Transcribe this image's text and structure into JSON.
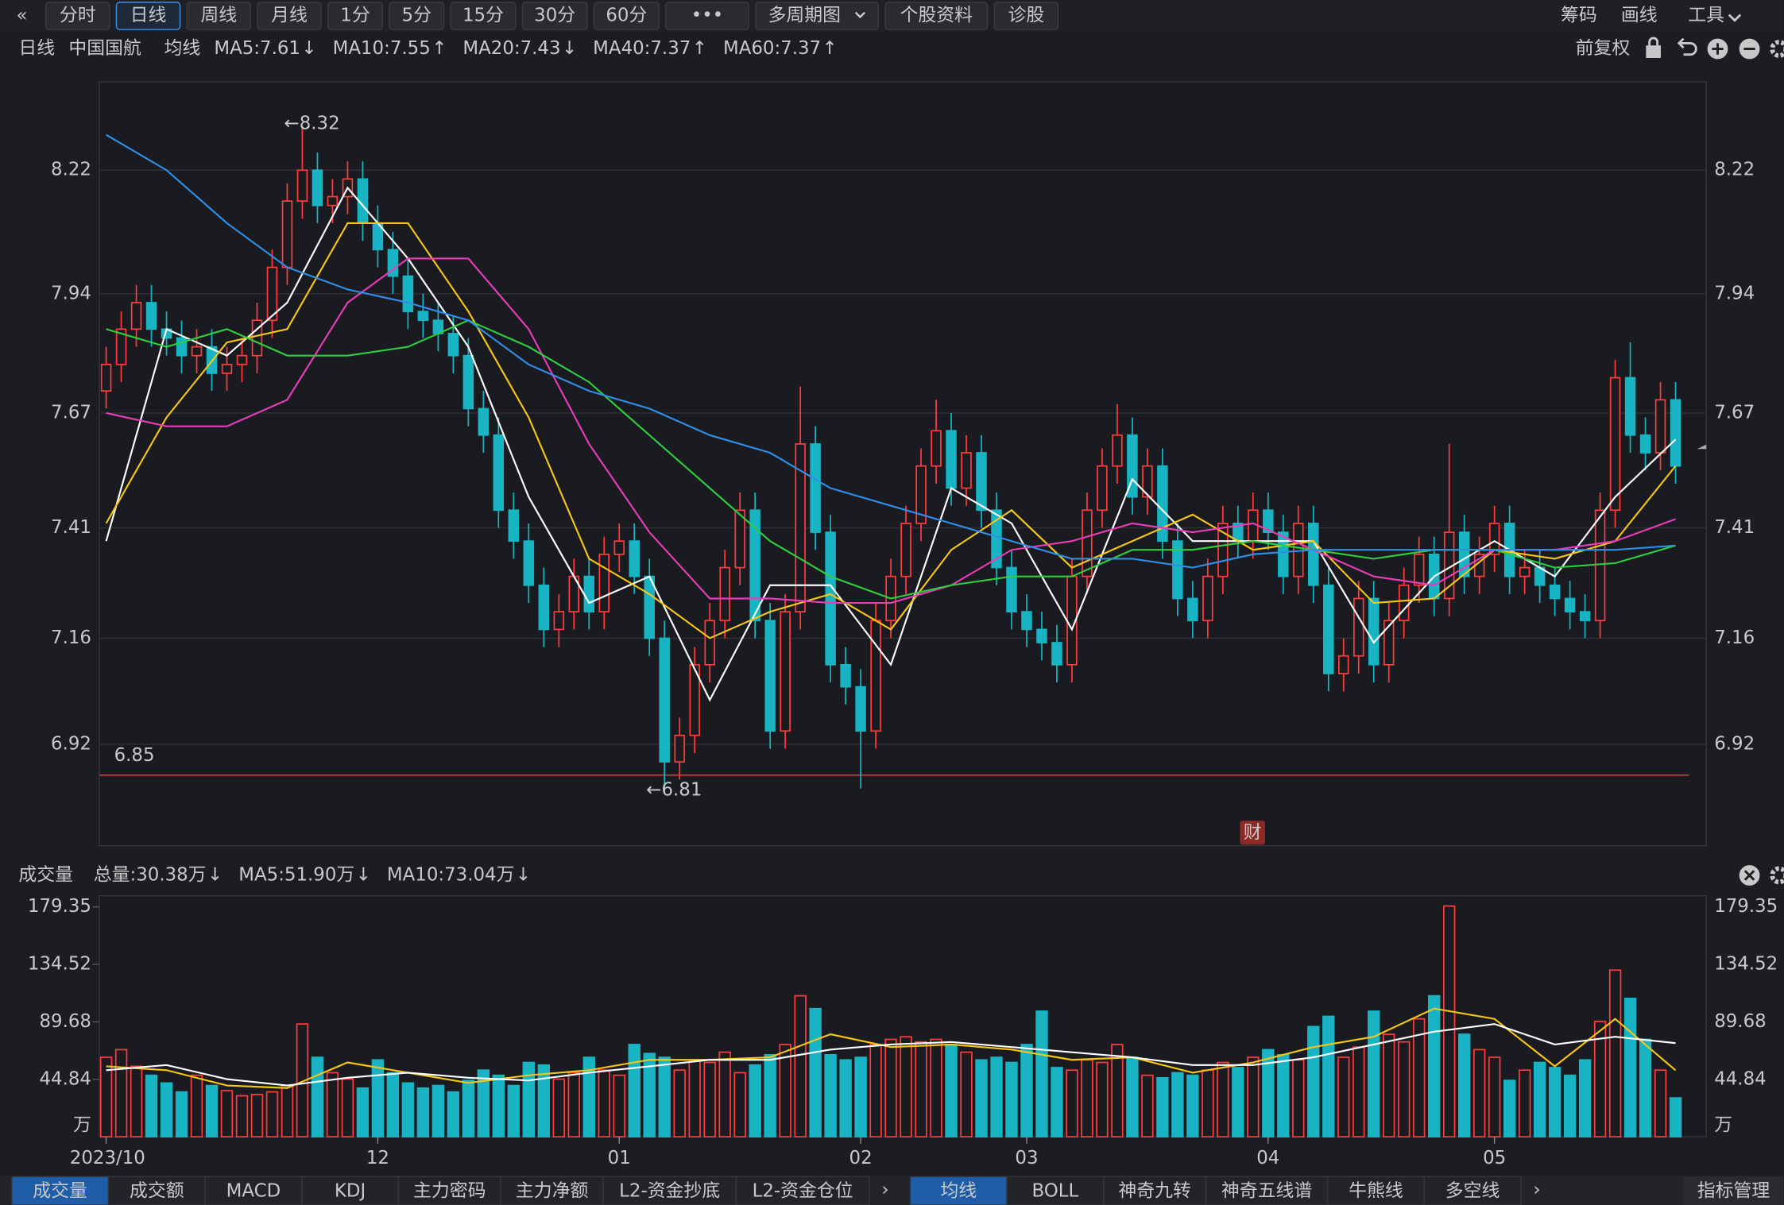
{
  "toolbar": {
    "back": "«",
    "tabs": [
      "分时",
      "日线",
      "周线",
      "月线",
      "1分",
      "5分",
      "15分",
      "30分",
      "60分",
      "•••",
      "多周期图",
      "个股资料",
      "诊股"
    ],
    "active": 1,
    "dropdown": 10,
    "right": [
      "筹码",
      "画线",
      "工具"
    ],
    "right_active": 1
  },
  "adjust": "前复权",
  "chart_data": [
    {
      "type": "candlestick",
      "legend": {
        "period": "日线",
        "name": "中国国航",
        "ma_label": "均线"
      },
      "xlim": [
        0,
        104
      ],
      "xticks": [
        {
          "value": 0,
          "label": "2023/10"
        },
        {
          "value": 18,
          "label": "12"
        },
        {
          "value": 34,
          "label": "01"
        },
        {
          "value": 50,
          "label": "02"
        },
        {
          "value": 61,
          "label": "03"
        },
        {
          "value": 77,
          "label": "04"
        },
        {
          "value": 92,
          "label": "05"
        }
      ],
      "ylim": [
        6.69,
        8.42
      ],
      "yticks": [
        6.92,
        7.16,
        7.41,
        7.67,
        7.94,
        8.22
      ],
      "grid": true,
      "up_color": "#ff3b3b",
      "down_color": "#19b4c4",
      "open": [
        7.72,
        7.78,
        7.86,
        7.92,
        7.86,
        7.84,
        7.8,
        7.82,
        7.76,
        7.78,
        7.8,
        7.88,
        8.0,
        8.15,
        8.22,
        8.14,
        8.16,
        8.2,
        8.1,
        8.04,
        7.98,
        7.9,
        7.88,
        7.85,
        7.8,
        7.68,
        7.62,
        7.45,
        7.38,
        7.28,
        7.18,
        7.22,
        7.3,
        7.22,
        7.35,
        7.38,
        7.3,
        7.16,
        6.88,
        6.94,
        7.1,
        7.2,
        7.32,
        7.45,
        7.2,
        6.95,
        7.22,
        7.6,
        7.4,
        7.1,
        7.05,
        6.95,
        7.2,
        7.3,
        7.42,
        7.55,
        7.63,
        7.5,
        7.58,
        7.45,
        7.32,
        7.22,
        7.18,
        7.15,
        7.1,
        7.3,
        7.45,
        7.55,
        7.62,
        7.48,
        7.55,
        7.38,
        7.25,
        7.2,
        7.3,
        7.42,
        7.38,
        7.45,
        7.4,
        7.3,
        7.42,
        7.28,
        7.08,
        7.12,
        7.25,
        7.1,
        7.2,
        7.28,
        7.35,
        7.25,
        7.4,
        7.3,
        7.35,
        7.42,
        7.3,
        7.32,
        7.28,
        7.25,
        7.22,
        7.2,
        7.45,
        7.75,
        7.62,
        7.58,
        7.7
      ],
      "high": [
        7.82,
        7.9,
        7.96,
        7.96,
        7.9,
        7.88,
        7.86,
        7.86,
        7.82,
        7.84,
        7.92,
        8.04,
        8.19,
        8.32,
        8.26,
        8.2,
        8.24,
        8.24,
        8.14,
        8.08,
        8.02,
        7.94,
        7.92,
        7.89,
        7.84,
        7.72,
        7.66,
        7.49,
        7.42,
        7.32,
        7.26,
        7.34,
        7.34,
        7.39,
        7.42,
        7.42,
        7.34,
        7.2,
        6.98,
        7.14,
        7.24,
        7.36,
        7.49,
        7.49,
        7.24,
        7.26,
        7.73,
        7.64,
        7.44,
        7.14,
        7.09,
        7.24,
        7.34,
        7.46,
        7.59,
        7.7,
        7.67,
        7.62,
        7.62,
        7.49,
        7.36,
        7.26,
        7.22,
        7.19,
        7.34,
        7.49,
        7.59,
        7.69,
        7.66,
        7.59,
        7.59,
        7.42,
        7.29,
        7.34,
        7.46,
        7.46,
        7.49,
        7.49,
        7.44,
        7.46,
        7.46,
        7.32,
        7.16,
        7.29,
        7.29,
        7.24,
        7.32,
        7.39,
        7.39,
        7.6,
        7.44,
        7.39,
        7.46,
        7.46,
        7.36,
        7.36,
        7.32,
        7.29,
        7.26,
        7.49,
        7.79,
        7.83,
        7.66,
        7.74,
        7.74
      ],
      "low": [
        7.68,
        7.74,
        7.82,
        7.82,
        7.8,
        7.76,
        7.76,
        7.72,
        7.72,
        7.74,
        7.76,
        7.84,
        7.96,
        8.11,
        8.1,
        8.1,
        8.12,
        8.06,
        8.0,
        7.94,
        7.86,
        7.84,
        7.81,
        7.76,
        7.64,
        7.58,
        7.41,
        7.34,
        7.24,
        7.14,
        7.14,
        7.18,
        7.18,
        7.18,
        7.31,
        7.26,
        7.12,
        6.81,
        6.84,
        6.9,
        7.06,
        7.16,
        7.28,
        7.16,
        6.91,
        6.91,
        7.18,
        7.36,
        7.06,
        7.01,
        6.82,
        6.91,
        7.16,
        7.26,
        7.38,
        7.51,
        7.46,
        7.46,
        7.41,
        7.28,
        7.18,
        7.14,
        7.11,
        7.06,
        7.06,
        7.26,
        7.41,
        7.51,
        7.44,
        7.44,
        7.34,
        7.21,
        7.16,
        7.16,
        7.26,
        7.34,
        7.34,
        7.36,
        7.26,
        7.26,
        7.24,
        7.04,
        7.04,
        7.08,
        7.06,
        7.06,
        7.16,
        7.24,
        7.21,
        7.21,
        7.26,
        7.26,
        7.31,
        7.26,
        7.26,
        7.24,
        7.21,
        7.18,
        7.16,
        7.16,
        7.41,
        7.58,
        7.54,
        7.54,
        7.51
      ],
      "close": [
        7.78,
        7.86,
        7.92,
        7.86,
        7.84,
        7.8,
        7.82,
        7.76,
        7.78,
        7.8,
        7.88,
        8.0,
        8.15,
        8.22,
        8.14,
        8.16,
        8.2,
        8.1,
        8.04,
        7.98,
        7.9,
        7.88,
        7.85,
        7.8,
        7.68,
        7.62,
        7.45,
        7.38,
        7.28,
        7.18,
        7.22,
        7.3,
        7.22,
        7.35,
        7.38,
        7.3,
        7.16,
        6.88,
        6.94,
        7.1,
        7.2,
        7.32,
        7.45,
        7.2,
        6.95,
        7.22,
        7.6,
        7.4,
        7.1,
        7.05,
        6.95,
        7.2,
        7.3,
        7.42,
        7.55,
        7.63,
        7.5,
        7.58,
        7.45,
        7.32,
        7.22,
        7.18,
        7.15,
        7.1,
        7.3,
        7.45,
        7.55,
        7.62,
        7.48,
        7.55,
        7.38,
        7.25,
        7.2,
        7.3,
        7.42,
        7.38,
        7.45,
        7.4,
        7.3,
        7.42,
        7.28,
        7.08,
        7.12,
        7.25,
        7.1,
        7.2,
        7.28,
        7.35,
        7.25,
        7.4,
        7.3,
        7.35,
        7.42,
        7.3,
        7.32,
        7.28,
        7.25,
        7.22,
        7.2,
        7.45,
        7.75,
        7.62,
        7.58,
        7.7,
        7.55
      ],
      "ma_x": [
        0,
        4,
        8,
        12,
        16,
        20,
        24,
        28,
        32,
        36,
        40,
        44,
        48,
        52,
        56,
        60,
        64,
        68,
        72,
        76,
        80,
        84,
        88,
        92,
        96,
        100,
        104
      ],
      "series": [
        {
          "name": "MA5:7.61",
          "arrow": "↓",
          "arrow_color": "#22d04a",
          "color": "#ffffff",
          "values": [
            7.38,
            7.86,
            7.8,
            7.92,
            8.18,
            8.02,
            7.82,
            7.48,
            7.24,
            7.3,
            7.02,
            7.28,
            7.28,
            7.1,
            7.5,
            7.42,
            7.18,
            7.52,
            7.38,
            7.38,
            7.38,
            7.15,
            7.3,
            7.38,
            7.3,
            7.48,
            7.61
          ]
        },
        {
          "name": "MA10:7.55",
          "arrow": "↑",
          "arrow_color": "#ff3b3b",
          "color": "#f5c518",
          "values": [
            7.42,
            7.66,
            7.83,
            7.86,
            8.1,
            8.1,
            7.9,
            7.66,
            7.34,
            7.26,
            7.16,
            7.22,
            7.26,
            7.18,
            7.36,
            7.45,
            7.32,
            7.38,
            7.44,
            7.36,
            7.38,
            7.24,
            7.25,
            7.36,
            7.34,
            7.38,
            7.55
          ]
        },
        {
          "name": "MA20:7.43",
          "arrow": "↓",
          "arrow_color": "#22d04a",
          "color": "#e83cb8",
          "values": [
            7.67,
            7.64,
            7.64,
            7.7,
            7.92,
            8.02,
            8.02,
            7.86,
            7.6,
            7.4,
            7.25,
            7.25,
            7.24,
            7.24,
            7.28,
            7.36,
            7.38,
            7.42,
            7.4,
            7.42,
            7.36,
            7.3,
            7.28,
            7.36,
            7.36,
            7.38,
            7.43
          ]
        },
        {
          "name": "MA40:7.37",
          "arrow": "↑",
          "arrow_color": "#ff3b3b",
          "color": "#2ecc40",
          "values": [
            7.86,
            7.82,
            7.86,
            7.8,
            7.8,
            7.82,
            7.88,
            7.82,
            7.74,
            7.62,
            7.5,
            7.38,
            7.3,
            7.25,
            7.28,
            7.3,
            7.3,
            7.36,
            7.36,
            7.38,
            7.36,
            7.34,
            7.36,
            7.36,
            7.32,
            7.33,
            7.37
          ]
        },
        {
          "name": "MA60:7.37",
          "arrow": "↑",
          "arrow_color": "#ff3b3b",
          "color": "#2f8fe8",
          "values": [
            8.3,
            8.22,
            8.1,
            8.0,
            7.95,
            7.92,
            7.88,
            7.78,
            7.72,
            7.68,
            7.62,
            7.58,
            7.5,
            7.46,
            7.42,
            7.38,
            7.34,
            7.34,
            7.32,
            7.35,
            7.36,
            7.36,
            7.36,
            7.36,
            7.36,
            7.36,
            7.37
          ]
        }
      ],
      "annotations": [
        {
          "value": 8.32,
          "label": "←8.32",
          "x": 13
        },
        {
          "value": 6.81,
          "label": "←6.81",
          "x": 37
        }
      ],
      "hline": {
        "value": 6.85,
        "label": "6.85",
        "color": "#e83030"
      },
      "badge": "财"
    },
    {
      "type": "bar",
      "title": "成交量",
      "total": {
        "name": "总量:30.38万",
        "arrow": "↓",
        "arrow_color": "#22d04a",
        "color": "#ff3b3b"
      },
      "ylim": [
        0,
        188
      ],
      "yticks": [
        44.84,
        89.68,
        134.52,
        179.35
      ],
      "unit": "万",
      "values": [
        62,
        68,
        55,
        48,
        42,
        35,
        48,
        40,
        36,
        32,
        33,
        35,
        40,
        88,
        62,
        50,
        45,
        38,
        60,
        50,
        42,
        38,
        40,
        35,
        44,
        52,
        48,
        40,
        58,
        56,
        45,
        50,
        62,
        52,
        48,
        72,
        65,
        62,
        52,
        60,
        58,
        66,
        50,
        56,
        64,
        72,
        110,
        100,
        64,
        60,
        62,
        72,
        76,
        78,
        74,
        76,
        72,
        66,
        60,
        62,
        58,
        72,
        98,
        54,
        52,
        60,
        58,
        72,
        62,
        48,
        46,
        50,
        48,
        52,
        58,
        54,
        62,
        68,
        64,
        60,
        86,
        94,
        62,
        70,
        98,
        80,
        74,
        92,
        110,
        180,
        80,
        68,
        62,
        44,
        52,
        58,
        54,
        48,
        60,
        90,
        130,
        108,
        76,
        52,
        30.38
      ],
      "ma_x": [
        0,
        4,
        8,
        12,
        16,
        20,
        24,
        28,
        32,
        36,
        40,
        44,
        48,
        52,
        56,
        60,
        64,
        68,
        72,
        76,
        80,
        84,
        88,
        92,
        96,
        100,
        104
      ],
      "series": [
        {
          "name": "MA5:51.90万",
          "arrow": "↓",
          "arrow_color": "#22d04a",
          "color": "#f5c518",
          "values": [
            55,
            52,
            40,
            38,
            58,
            50,
            42,
            48,
            52,
            60,
            60,
            62,
            80,
            70,
            72,
            68,
            60,
            62,
            50,
            58,
            70,
            78,
            100,
            92,
            55,
            92,
            51.9
          ]
        },
        {
          "name": "MA10:73.04万",
          "arrow": "↓",
          "arrow_color": "#22d04a",
          "color": "#ffffff",
          "values": [
            52,
            56,
            45,
            40,
            46,
            50,
            46,
            44,
            50,
            55,
            60,
            60,
            68,
            72,
            74,
            70,
            66,
            62,
            56,
            56,
            62,
            72,
            82,
            88,
            72,
            78,
            73.04
          ]
        }
      ]
    }
  ],
  "bottom_tabs": {
    "left": [
      "成交量",
      "成交额",
      "MACD",
      "KDJ",
      "主力密码",
      "主力净额",
      "L2-资金抄底",
      "L2-资金仓位"
    ],
    "left_active": 0,
    "right": [
      "均线",
      "BOLL",
      "神奇九转",
      "神奇五线谱",
      "牛熊线",
      "多空线"
    ],
    "right_active": 0,
    "more": "›",
    "manage": "指标管理"
  }
}
